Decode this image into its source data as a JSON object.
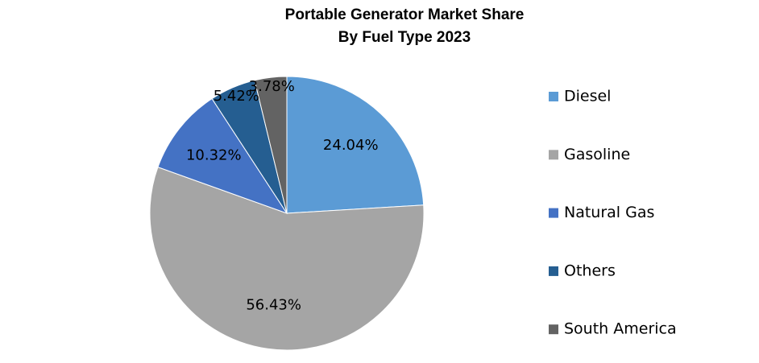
{
  "chart_data": {
    "type": "pie",
    "title": [
      "Portable Generator Market Share",
      "By Fuel Type 2023"
    ],
    "categories": [
      "Diesel",
      "Gasoline",
      "Natural Gas",
      "Others",
      "South America"
    ],
    "values": [
      24.04,
      56.43,
      10.32,
      5.42,
      3.78
    ],
    "value_labels": [
      "24.04%",
      "56.43%",
      "10.32%",
      "5.42%",
      "3.78%"
    ],
    "colors": [
      "#5b9bd5",
      "#a5a5a5",
      "#4472c4",
      "#255e91",
      "#636363"
    ],
    "legend": "right"
  }
}
